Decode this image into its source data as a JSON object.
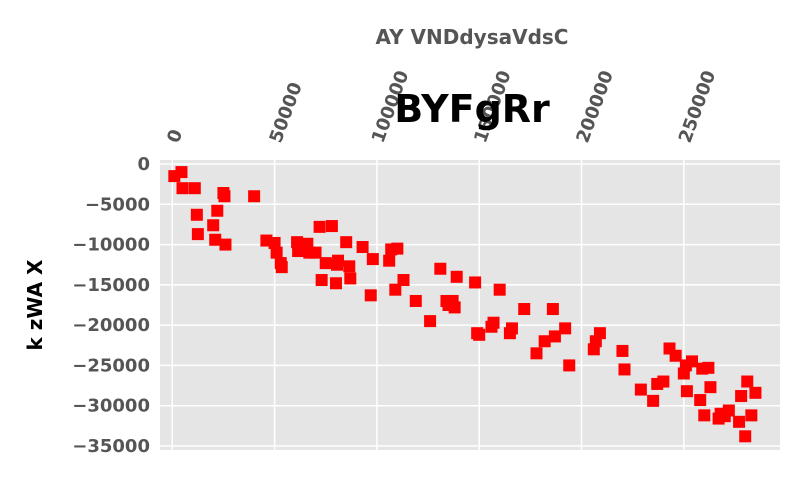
{
  "chart_data": {
    "type": "scatter",
    "title": "BYFgRr",
    "xlabel": "AY VNDdysaVdsC",
    "ylabel": "k zWA X",
    "xaxis_position": "top",
    "xlim": [
      -6000,
      297000
    ],
    "ylim": [
      -35500,
      500
    ],
    "xticks": [
      0,
      50000,
      100000,
      150000,
      200000,
      250000
    ],
    "xtick_labels": [
      "0",
      "50000",
      "100000",
      "150000",
      "200000",
      "250000"
    ],
    "yticks": [
      0,
      -5000,
      -10000,
      -15000,
      -20000,
      -25000,
      -30000,
      -35000
    ],
    "ytick_labels": [
      "0",
      "−5000",
      "−10000",
      "−15000",
      "−20000",
      "−25000",
      "−30000",
      "−35000"
    ],
    "grid": true,
    "marker": "square",
    "colors": {
      "points": "#ff0000",
      "background": "#e5e5e5",
      "grid": "#ffffff",
      "ylabel": "#000000",
      "xlabel": "#555555"
    },
    "x": [
      1000,
      4500,
      5000,
      11000,
      12500,
      12000,
      20000,
      21000,
      22000,
      25000,
      25500,
      26000,
      40000,
      46000,
      50000,
      51000,
      53000,
      53500,
      61000,
      61500,
      66000,
      67000,
      70000,
      72000,
      73000,
      75000,
      78000,
      80000,
      81000,
      80500,
      85000,
      86500,
      87000,
      93000,
      97000,
      98000,
      106000,
      107000,
      109000,
      110000,
      113000,
      119000,
      126000,
      131000,
      134000,
      135000,
      137000,
      138000,
      139000,
      148000,
      149000,
      150000,
      156000,
      157000,
      160000,
      165000,
      166000,
      172000,
      178000,
      182000,
      186000,
      187000,
      192000,
      194000,
      206000,
      207000,
      209000,
      220000,
      221000,
      229000,
      235000,
      237000,
      240000,
      243000,
      246000,
      250000,
      251000,
      251500,
      254000,
      258000,
      259000,
      260000,
      262000,
      263000,
      267000,
      268000,
      270000,
      272000,
      277000,
      278000,
      280000,
      281000,
      283000,
      285000
    ],
    "y": [
      -1500,
      -1000,
      -3000,
      -3000,
      -8700,
      -6300,
      -7600,
      -9400,
      -5800,
      -3600,
      -4000,
      -10000,
      -4000,
      -9500,
      -9800,
      -11000,
      -12300,
      -12800,
      -9700,
      -10800,
      -9900,
      -11000,
      -11000,
      -7800,
      -14400,
      -12300,
      -7700,
      -14800,
      -12000,
      -12500,
      -9700,
      -12700,
      -14200,
      -10300,
      -16300,
      -11800,
      -12000,
      -10600,
      -15600,
      -10500,
      -14400,
      -17000,
      -19500,
      -13000,
      -17000,
      -17500,
      -17000,
      -17800,
      -14000,
      -14700,
      -21000,
      -21200,
      -20200,
      -19700,
      -15600,
      -21000,
      -20400,
      -18000,
      -23500,
      -22000,
      -18000,
      -21400,
      -20400,
      -25000,
      -23000,
      -22000,
      -21000,
      -23200,
      -25500,
      -28000,
      -29400,
      -27300,
      -27000,
      -22900,
      -23800,
      -26000,
      -25000,
      -28200,
      -24500,
      -29300,
      -25400,
      -31200,
      -25300,
      -27700,
      -31600,
      -31000,
      -31300,
      -30600,
      -32000,
      -28800,
      -33800,
      -27000,
      -31200,
      -28400
    ]
  }
}
